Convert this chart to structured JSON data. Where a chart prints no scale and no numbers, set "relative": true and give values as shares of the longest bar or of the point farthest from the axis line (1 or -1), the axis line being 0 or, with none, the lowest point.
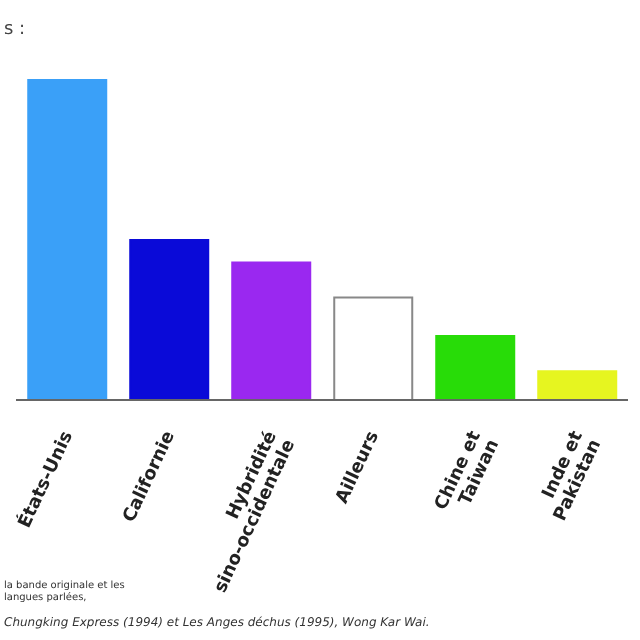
{
  "chart_data": {
    "type": "bar",
    "title": "s :",
    "relative": true,
    "categories": [
      "États-Unis",
      "Californie",
      "Hybridité\nsino-occidentale",
      "Ailleurs",
      "Chine et\nTaiwan",
      "Inde et\nPakistan"
    ],
    "values": [
      1,
      0.5,
      0.43,
      0.32,
      0.2,
      0.09
    ],
    "colors": [
      "#3aa0f8",
      "#0a0ad8",
      "#9a28f0",
      "#ffffff",
      "#28dc08",
      "#e6f520"
    ],
    "grid": false,
    "legend": false,
    "annotations": [
      "la bande originale et les langues parlées,",
      "Chungking Express (1994) et Les Anges déchus (1995), Wong Kar Wai."
    ]
  }
}
